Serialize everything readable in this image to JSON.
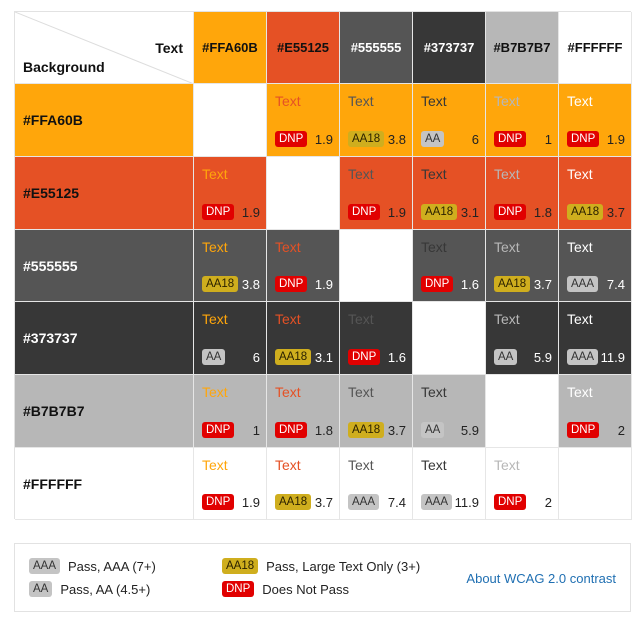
{
  "grid": {
    "corner": {
      "foreground_label": "Text",
      "background_label": "Background"
    },
    "sample_text": "Text",
    "columns": [
      {
        "hex": "#FFA60B",
        "color": "#FFA60B",
        "header_text_color": "#111111"
      },
      {
        "hex": "#E55125",
        "color": "#E55125",
        "header_text_color": "#111111"
      },
      {
        "hex": "#555555",
        "color": "#555555",
        "header_text_color": "#ffffff"
      },
      {
        "hex": "#373737",
        "color": "#373737",
        "header_text_color": "#ffffff"
      },
      {
        "hex": "#B7B7B7",
        "color": "#B7B7B7",
        "header_text_color": "#111111"
      },
      {
        "hex": "#FFFFFF",
        "color": "#FFFFFF",
        "header_text_color": "#111111"
      }
    ],
    "rows": [
      {
        "hex": "#FFA60B",
        "color": "#FFA60B",
        "label_color": "#111111",
        "ratio_color": "#222222",
        "cells": [
          null,
          {
            "badge": "DNP",
            "ratio": "1.9"
          },
          {
            "badge": "AA18",
            "ratio": "3.8"
          },
          {
            "badge": "AA",
            "ratio": "6"
          },
          {
            "badge": "DNP",
            "ratio": "1"
          },
          {
            "badge": "DNP",
            "ratio": "1.9"
          }
        ]
      },
      {
        "hex": "#E55125",
        "color": "#E55125",
        "label_color": "#111111",
        "ratio_color": "#222222",
        "cells": [
          {
            "badge": "DNP",
            "ratio": "1.9"
          },
          null,
          {
            "badge": "DNP",
            "ratio": "1.9"
          },
          {
            "badge": "AA18",
            "ratio": "3.1"
          },
          {
            "badge": "DNP",
            "ratio": "1.8"
          },
          {
            "badge": "AA18",
            "ratio": "3.7"
          }
        ]
      },
      {
        "hex": "#555555",
        "color": "#555555",
        "label_color": "#ffffff",
        "ratio_color": "#ffffff",
        "cells": [
          {
            "badge": "AA18",
            "ratio": "3.8"
          },
          {
            "badge": "DNP",
            "ratio": "1.9"
          },
          null,
          {
            "badge": "DNP",
            "ratio": "1.6"
          },
          {
            "badge": "AA18",
            "ratio": "3.7"
          },
          {
            "badge": "AAA",
            "ratio": "7.4"
          }
        ]
      },
      {
        "hex": "#373737",
        "color": "#373737",
        "label_color": "#ffffff",
        "ratio_color": "#ffffff",
        "cells": [
          {
            "badge": "AA",
            "ratio": "6"
          },
          {
            "badge": "AA18",
            "ratio": "3.1"
          },
          {
            "badge": "DNP",
            "ratio": "1.6"
          },
          null,
          {
            "badge": "AA",
            "ratio": "5.9"
          },
          {
            "badge": "AAA",
            "ratio": "11.9"
          }
        ]
      },
      {
        "hex": "#B7B7B7",
        "color": "#B7B7B7",
        "label_color": "#111111",
        "ratio_color": "#222222",
        "cells": [
          {
            "badge": "DNP",
            "ratio": "1"
          },
          {
            "badge": "DNP",
            "ratio": "1.8"
          },
          {
            "badge": "AA18",
            "ratio": "3.7"
          },
          {
            "badge": "AA",
            "ratio": "5.9"
          },
          null,
          {
            "badge": "DNP",
            "ratio": "2"
          }
        ]
      },
      {
        "hex": "#FFFFFF",
        "color": "#FFFFFF",
        "label_color": "#111111",
        "ratio_color": "#222222",
        "cells": [
          {
            "badge": "DNP",
            "ratio": "1.9"
          },
          {
            "badge": "AA18",
            "ratio": "3.7"
          },
          {
            "badge": "AAA",
            "ratio": "7.4"
          },
          {
            "badge": "AAA",
            "ratio": "11.9"
          },
          {
            "badge": "DNP",
            "ratio": "2"
          },
          null
        ]
      }
    ]
  },
  "legend": {
    "items": [
      {
        "badge": "AAA",
        "text": "Pass, AAA (7+)"
      },
      {
        "badge": "AA",
        "text": "Pass, AA (4.5+)"
      },
      {
        "badge": "AA18",
        "text": "Pass, Large Text Only (3+)"
      },
      {
        "badge": "DNP",
        "text": "Does Not Pass"
      }
    ],
    "link_text": "About WCAG 2.0 contrast"
  }
}
